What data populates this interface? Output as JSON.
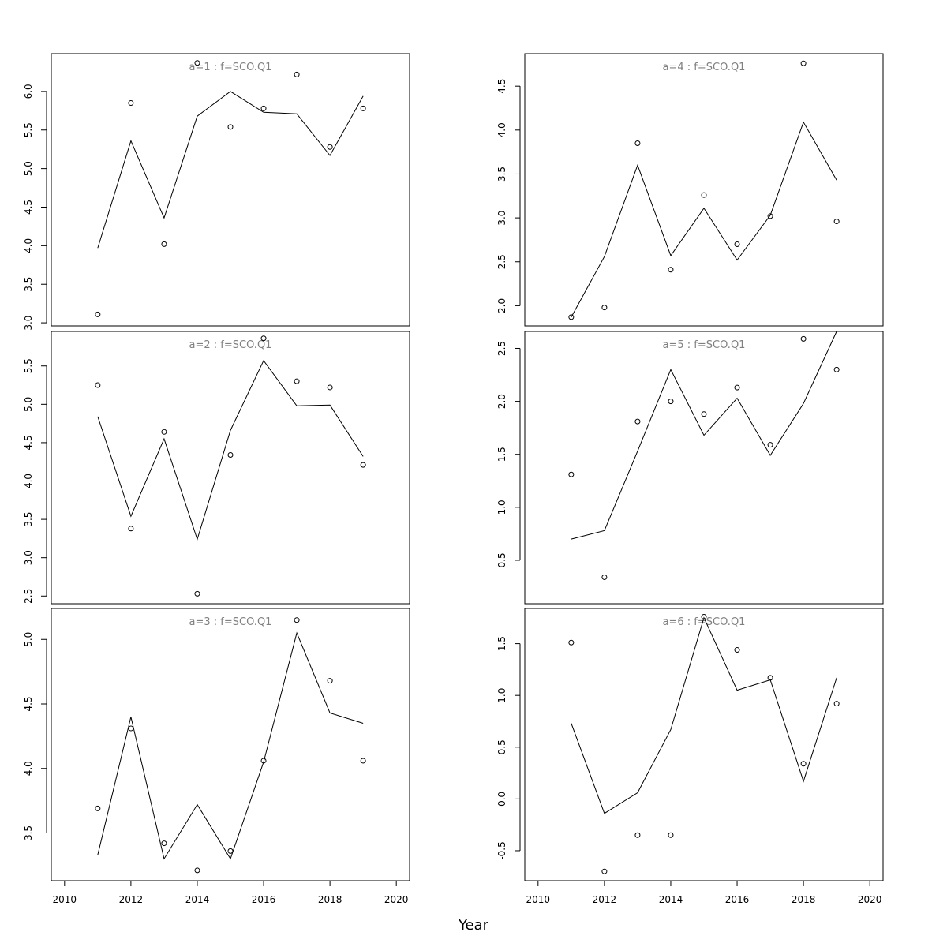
{
  "chart_data": {
    "type": "line",
    "xlabel": "Year",
    "x_ticks": [
      2010,
      2012,
      2014,
      2016,
      2018,
      2020
    ],
    "xlim": [
      2009.6,
      2020.4
    ],
    "panels": [
      {
        "title": "a=1 : f=SCO.Q1",
        "ylim": [
          2.96,
          6.49
        ],
        "y_ticks": [
          3.0,
          3.5,
          4.0,
          4.5,
          5.0,
          5.5,
          6.0
        ],
        "y_tick_labels": [
          "3.0",
          "3.5",
          "4.0",
          "4.5",
          "5.0",
          "5.5",
          "6.0"
        ],
        "x": [
          2011,
          2012,
          2013,
          2014,
          2015,
          2016,
          2017,
          2018,
          2019
        ],
        "fitted": [
          3.97,
          5.36,
          4.36,
          5.68,
          6.0,
          5.73,
          5.71,
          5.17,
          5.94
        ],
        "observed": [
          3.11,
          5.85,
          4.02,
          6.37,
          5.54,
          5.78,
          6.22,
          5.28,
          5.78
        ]
      },
      {
        "title": "a=2 : f=SCO.Q1",
        "ylim": [
          2.4,
          5.95
        ],
        "y_ticks": [
          2.5,
          3.0,
          3.5,
          4.0,
          4.5,
          5.0,
          5.5
        ],
        "y_tick_labels": [
          "2.5",
          "3.0",
          "3.5",
          "4.0",
          "4.5",
          "5.0",
          "5.5"
        ],
        "x": [
          2011,
          2012,
          2013,
          2014,
          2015,
          2016,
          2017,
          2018,
          2019
        ],
        "fitted": [
          4.84,
          3.54,
          4.55,
          3.24,
          4.66,
          5.57,
          4.98,
          4.99,
          4.32
        ],
        "observed": [
          5.25,
          3.38,
          4.64,
          2.53,
          4.34,
          5.86,
          5.3,
          5.22,
          4.21
        ]
      },
      {
        "title": "a=3 : f=SCO.Q1",
        "ylim": [
          3.13,
          5.24
        ],
        "y_ticks": [
          3.5,
          4.0,
          4.5,
          5.0
        ],
        "y_tick_labels": [
          "3.5",
          "4.0",
          "4.5",
          "5.0"
        ],
        "x": [
          2011,
          2012,
          2013,
          2014,
          2015,
          2016,
          2017,
          2018,
          2019
        ],
        "fitted": [
          3.33,
          4.4,
          3.3,
          3.72,
          3.3,
          4.05,
          5.05,
          4.43,
          4.35
        ],
        "observed": [
          3.69,
          4.31,
          3.42,
          3.21,
          3.36,
          4.06,
          5.15,
          4.68,
          4.06
        ]
      },
      {
        "title": "a=4 : f=SCO.Q1",
        "ylim": [
          1.77,
          4.87
        ],
        "y_ticks": [
          2.0,
          2.5,
          3.0,
          3.5,
          4.0,
          4.5
        ],
        "y_tick_labels": [
          "2.0",
          "2.5",
          "3.0",
          "3.5",
          "4.0",
          "4.5"
        ],
        "x": [
          2011,
          2012,
          2013,
          2014,
          2015,
          2016,
          2017,
          2018,
          2019
        ],
        "fitted": [
          1.87,
          2.56,
          3.6,
          2.57,
          3.11,
          2.52,
          3.03,
          4.09,
          3.43
        ],
        "observed": [
          1.87,
          1.98,
          3.85,
          2.41,
          3.26,
          2.7,
          3.02,
          4.76,
          2.96
        ]
      },
      {
        "title": "a=5 : f=SCO.Q1",
        "ylim": [
          0.09,
          2.66
        ],
        "y_ticks": [
          0.5,
          1.0,
          1.5,
          2.0,
          2.5
        ],
        "y_tick_labels": [
          "0.5",
          "1.0",
          "1.5",
          "2.0",
          "2.5"
        ],
        "x": [
          2011,
          2012,
          2013,
          2014,
          2015,
          2016,
          2017,
          2018,
          2019
        ],
        "fitted": [
          0.7,
          0.78,
          1.53,
          2.3,
          1.68,
          2.03,
          1.49,
          1.98,
          2.66
        ],
        "observed": [
          1.31,
          0.34,
          1.81,
          2.0,
          1.88,
          2.13,
          1.59,
          2.59,
          2.3
        ]
      },
      {
        "title": "a=6 : f=SCO.Q1",
        "ylim": [
          -0.79,
          1.84
        ],
        "y_ticks": [
          -0.5,
          0.0,
          0.5,
          1.0,
          1.5
        ],
        "y_tick_labels": [
          "-0.5",
          "0.0",
          "0.5",
          "1.0",
          "1.5"
        ],
        "x": [
          2011,
          2012,
          2013,
          2014,
          2015,
          2016,
          2017,
          2018,
          2019
        ],
        "fitted": [
          0.73,
          -0.14,
          0.06,
          0.67,
          1.75,
          1.05,
          1.15,
          0.17,
          1.17
        ],
        "observed": [
          1.51,
          -0.7,
          -0.35,
          -0.35,
          1.76,
          1.44,
          1.17,
          0.34,
          0.92
        ]
      }
    ]
  }
}
